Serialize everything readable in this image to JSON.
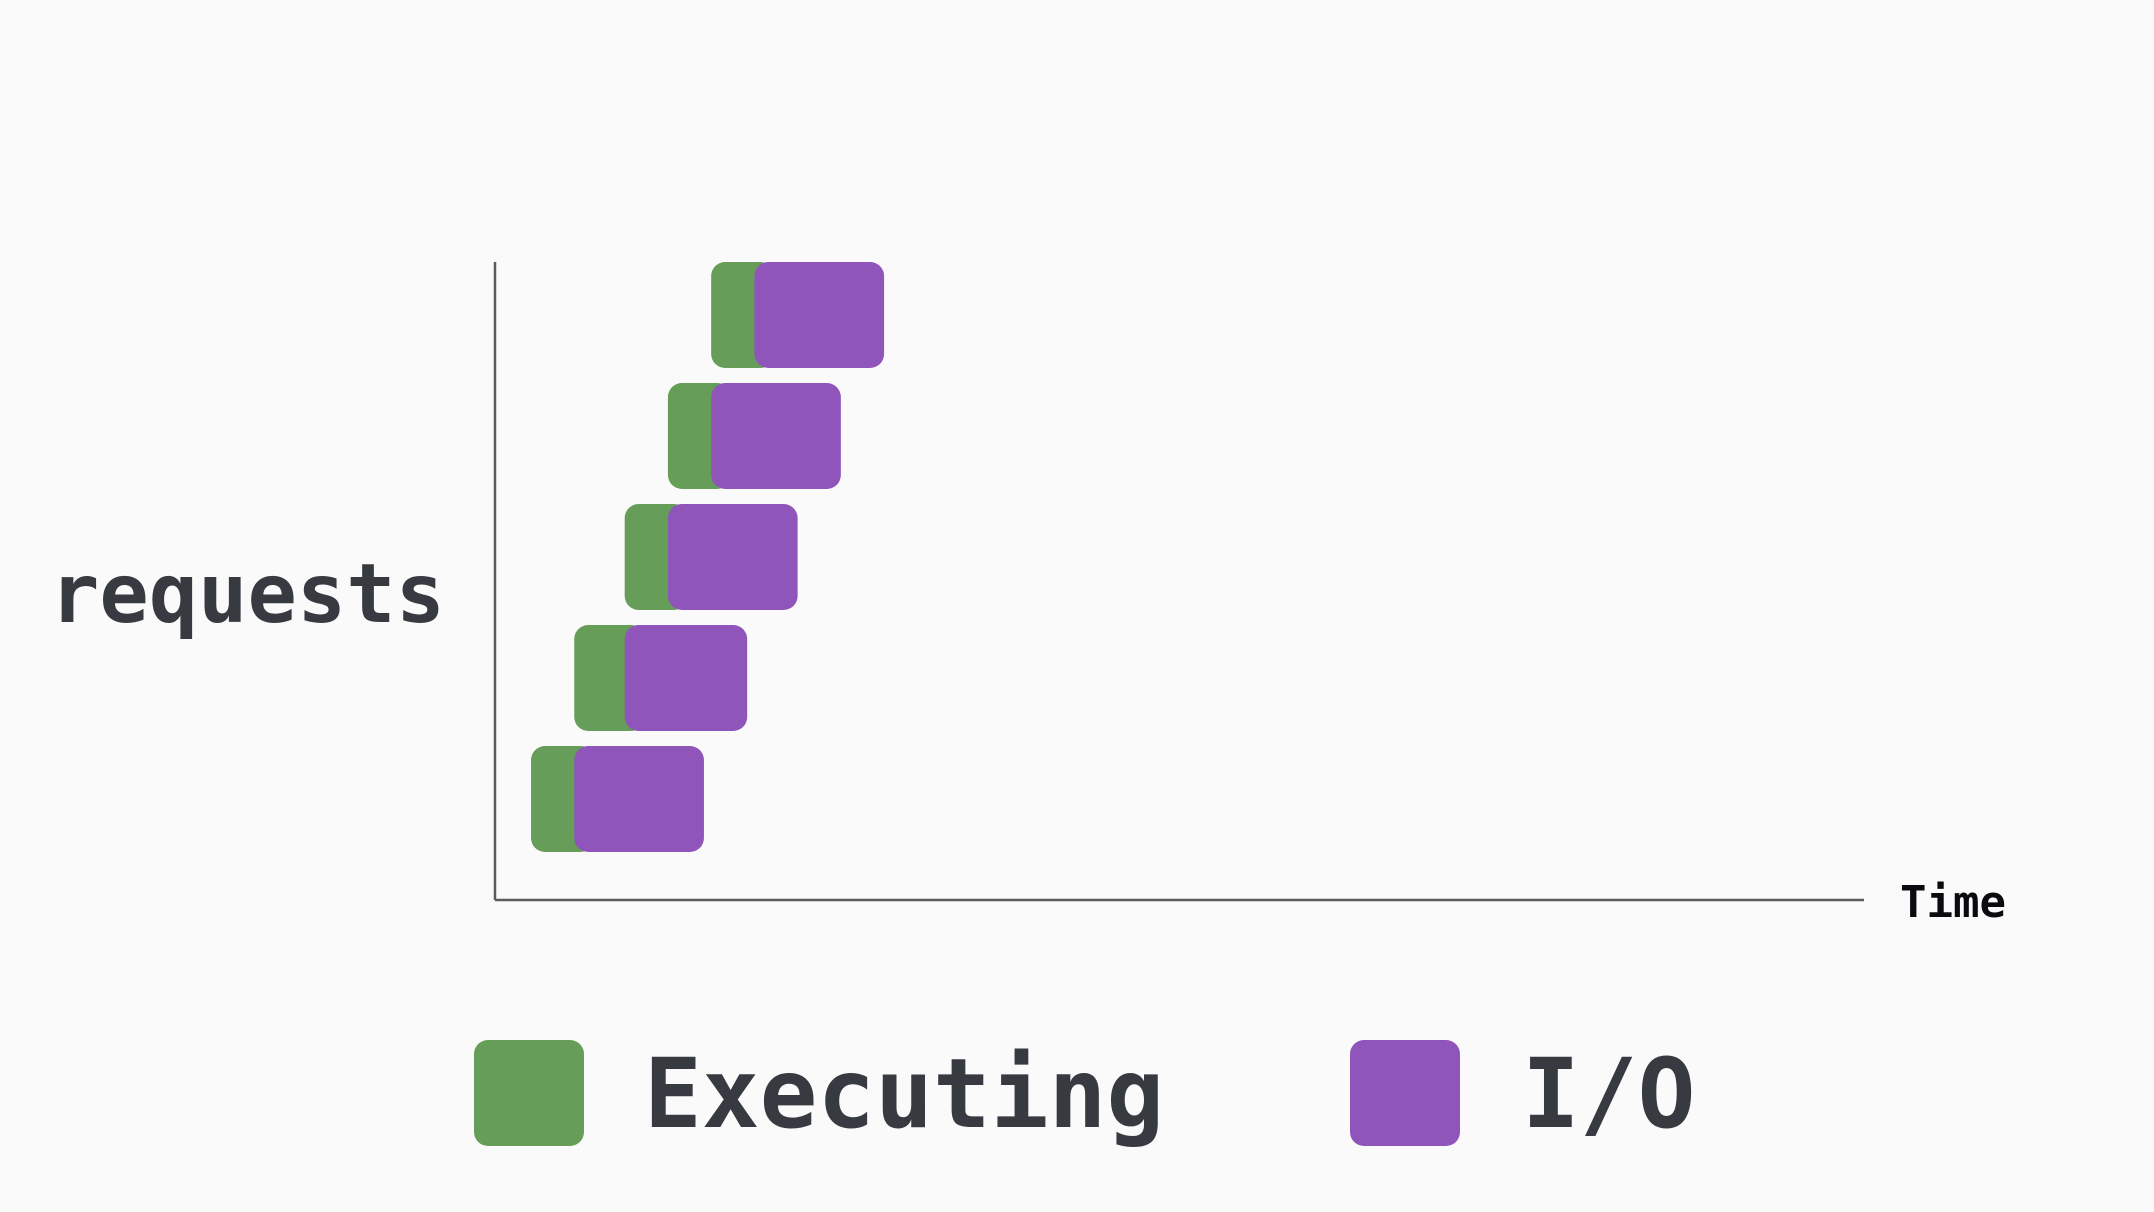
{
  "chart_data": {
    "type": "bar",
    "title": "",
    "xlabel": "Time",
    "ylabel": "requests",
    "grid": false,
    "legend_position": "bottom",
    "colors": {
      "Executing": "#669d59",
      "I/O": "#8f55bb",
      "axis": "#5a5a5a",
      "background": "#fafafa"
    },
    "xlim": [
      0,
      19
    ],
    "series": [
      {
        "name": "Executing",
        "color": "#669d59"
      },
      {
        "name": "I/O",
        "color": "#8f55bb"
      }
    ],
    "requests": [
      {
        "executing": [
          0.5,
          1.1
        ],
        "io": [
          1.1,
          2.9
        ]
      },
      {
        "executing": [
          1.1,
          1.8
        ],
        "io": [
          1.8,
          3.5
        ]
      },
      {
        "executing": [
          1.8,
          2.4
        ],
        "io": [
          2.4,
          4.2
        ]
      },
      {
        "executing": [
          2.4,
          3.0
        ],
        "io": [
          3.0,
          4.8
        ]
      },
      {
        "executing": [
          3.0,
          3.6
        ],
        "io": [
          3.6,
          5.4
        ]
      }
    ]
  }
}
